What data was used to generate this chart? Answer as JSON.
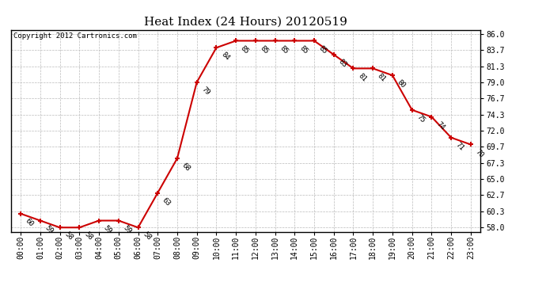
{
  "title": "Heat Index (24 Hours) 20120519",
  "copyright": "Copyright 2012 Cartronics.com",
  "hours": [
    0,
    1,
    2,
    3,
    4,
    5,
    6,
    7,
    8,
    9,
    10,
    11,
    12,
    13,
    14,
    15,
    16,
    17,
    18,
    19,
    20,
    21,
    22,
    23
  ],
  "values": [
    60,
    59,
    58,
    58,
    59,
    59,
    58,
    63,
    68,
    79,
    84,
    85,
    85,
    85,
    85,
    85,
    83,
    81,
    81,
    80,
    75,
    74,
    71,
    70
  ],
  "x_labels": [
    "00:00",
    "01:00",
    "02:00",
    "03:00",
    "04:00",
    "05:00",
    "06:00",
    "07:00",
    "08:00",
    "09:00",
    "10:00",
    "11:00",
    "12:00",
    "13:00",
    "14:00",
    "15:00",
    "16:00",
    "17:00",
    "18:00",
    "19:00",
    "20:00",
    "21:00",
    "22:00",
    "23:00"
  ],
  "y_ticks": [
    58.0,
    60.3,
    62.7,
    65.0,
    67.3,
    69.7,
    72.0,
    74.3,
    76.7,
    79.0,
    81.3,
    83.7,
    86.0
  ],
  "ylim": [
    57.4,
    86.6
  ],
  "xlim": [
    -0.5,
    23.5
  ],
  "line_color": "#cc0000",
  "marker_color": "#cc0000",
  "bg_color": "#ffffff",
  "grid_color": "#bbbbbb",
  "title_fontsize": 11,
  "label_fontsize": 7,
  "annotation_fontsize": 6.5,
  "copyright_fontsize": 6.5
}
